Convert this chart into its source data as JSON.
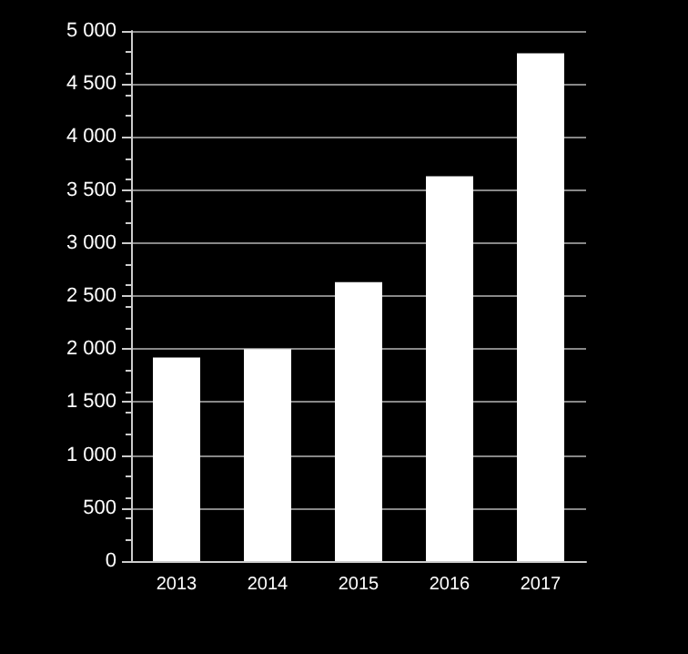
{
  "chart_data": {
    "type": "bar",
    "categories": [
      "2013",
      "2014",
      "2015",
      "2016",
      "2017"
    ],
    "values": [
      1920,
      2000,
      2630,
      3630,
      4790
    ],
    "color": "#ffffff",
    "ylim": [
      0,
      5000
    ],
    "yticks": [
      0,
      500,
      {
        "value": 1000,
        "label": "1 000"
      },
      {
        "value": 1500,
        "label": "1 500"
      },
      {
        "value": 2000,
        "label": "2 000"
      },
      {
        "value": 2500,
        "label": "2 500"
      },
      {
        "value": 3000,
        "label": "3 000"
      },
      {
        "value": 3500,
        "label": "3 500"
      },
      {
        "value": 4000,
        "label": "4 000"
      },
      {
        "value": 4500,
        "label": "4 500"
      },
      {
        "value": 5000,
        "label": "5 000"
      }
    ],
    "grid": "y"
  }
}
